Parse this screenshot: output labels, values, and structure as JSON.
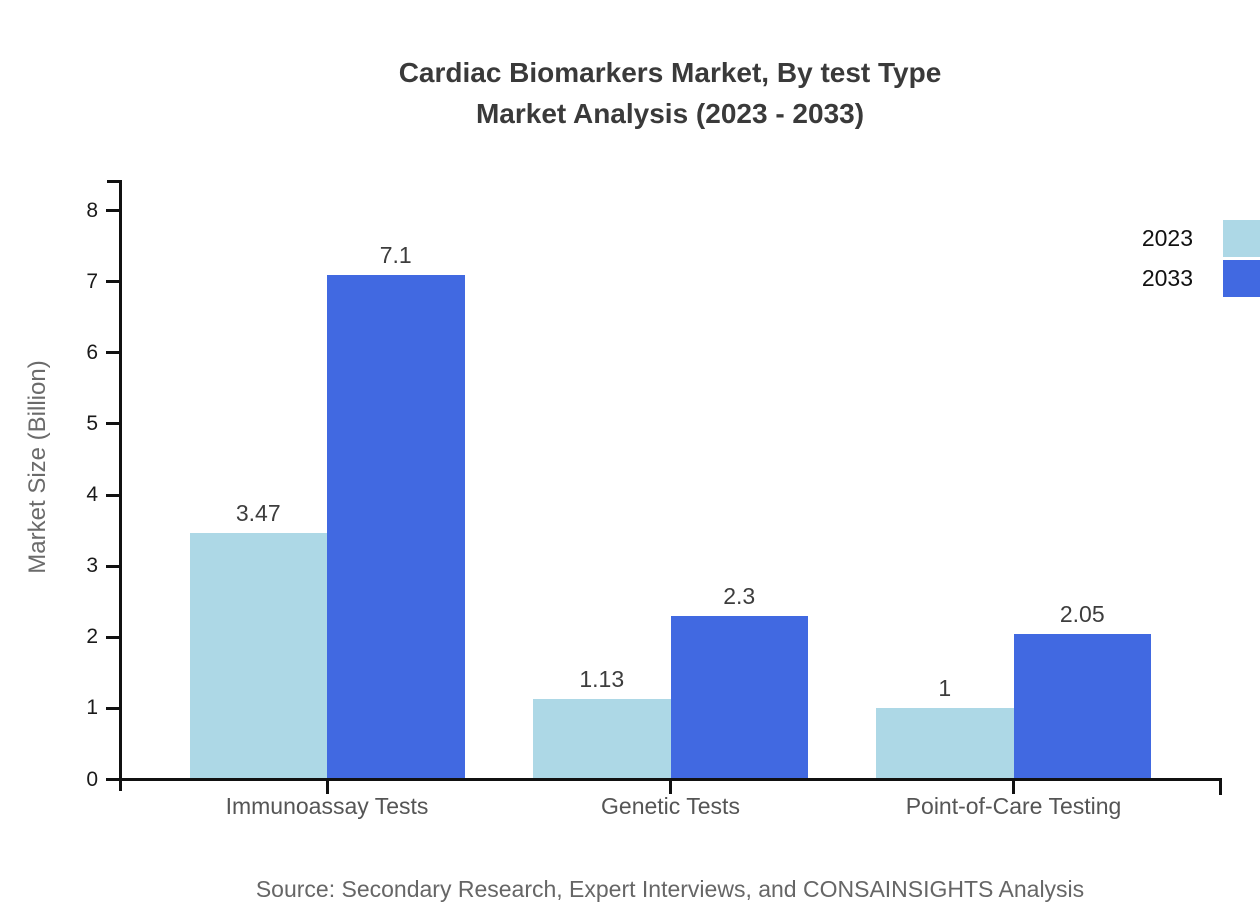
{
  "title": {
    "line1": "Cardiac Biomarkers Market, By test Type",
    "line2": "Market Analysis (2023 - 2033)"
  },
  "source": "Source: Secondary Research, Expert Interviews, and CONSAINSIGHTS Analysis",
  "chart_data": {
    "type": "bar",
    "title": "Cardiac Biomarkers Market, By test Type Market Analysis (2023 - 2033)",
    "categories": [
      "Immunoassay Tests",
      "Genetic Tests",
      "Point-of-Care Testing"
    ],
    "series": [
      {
        "name": "2023",
        "color": "#ADD8E6",
        "values": [
          3.47,
          1.13,
          1
        ]
      },
      {
        "name": "2033",
        "color": "#4169E1",
        "values": [
          7.1,
          2.3,
          2.05
        ]
      }
    ],
    "xlabel": "",
    "ylabel": "Market Size (Billion)",
    "ylim": [
      0,
      8
    ],
    "yticks": [
      0,
      1,
      2,
      3,
      4,
      5,
      6,
      7,
      8
    ],
    "grid": false,
    "legend_position": "top-right",
    "value_labels_shown": true
  }
}
